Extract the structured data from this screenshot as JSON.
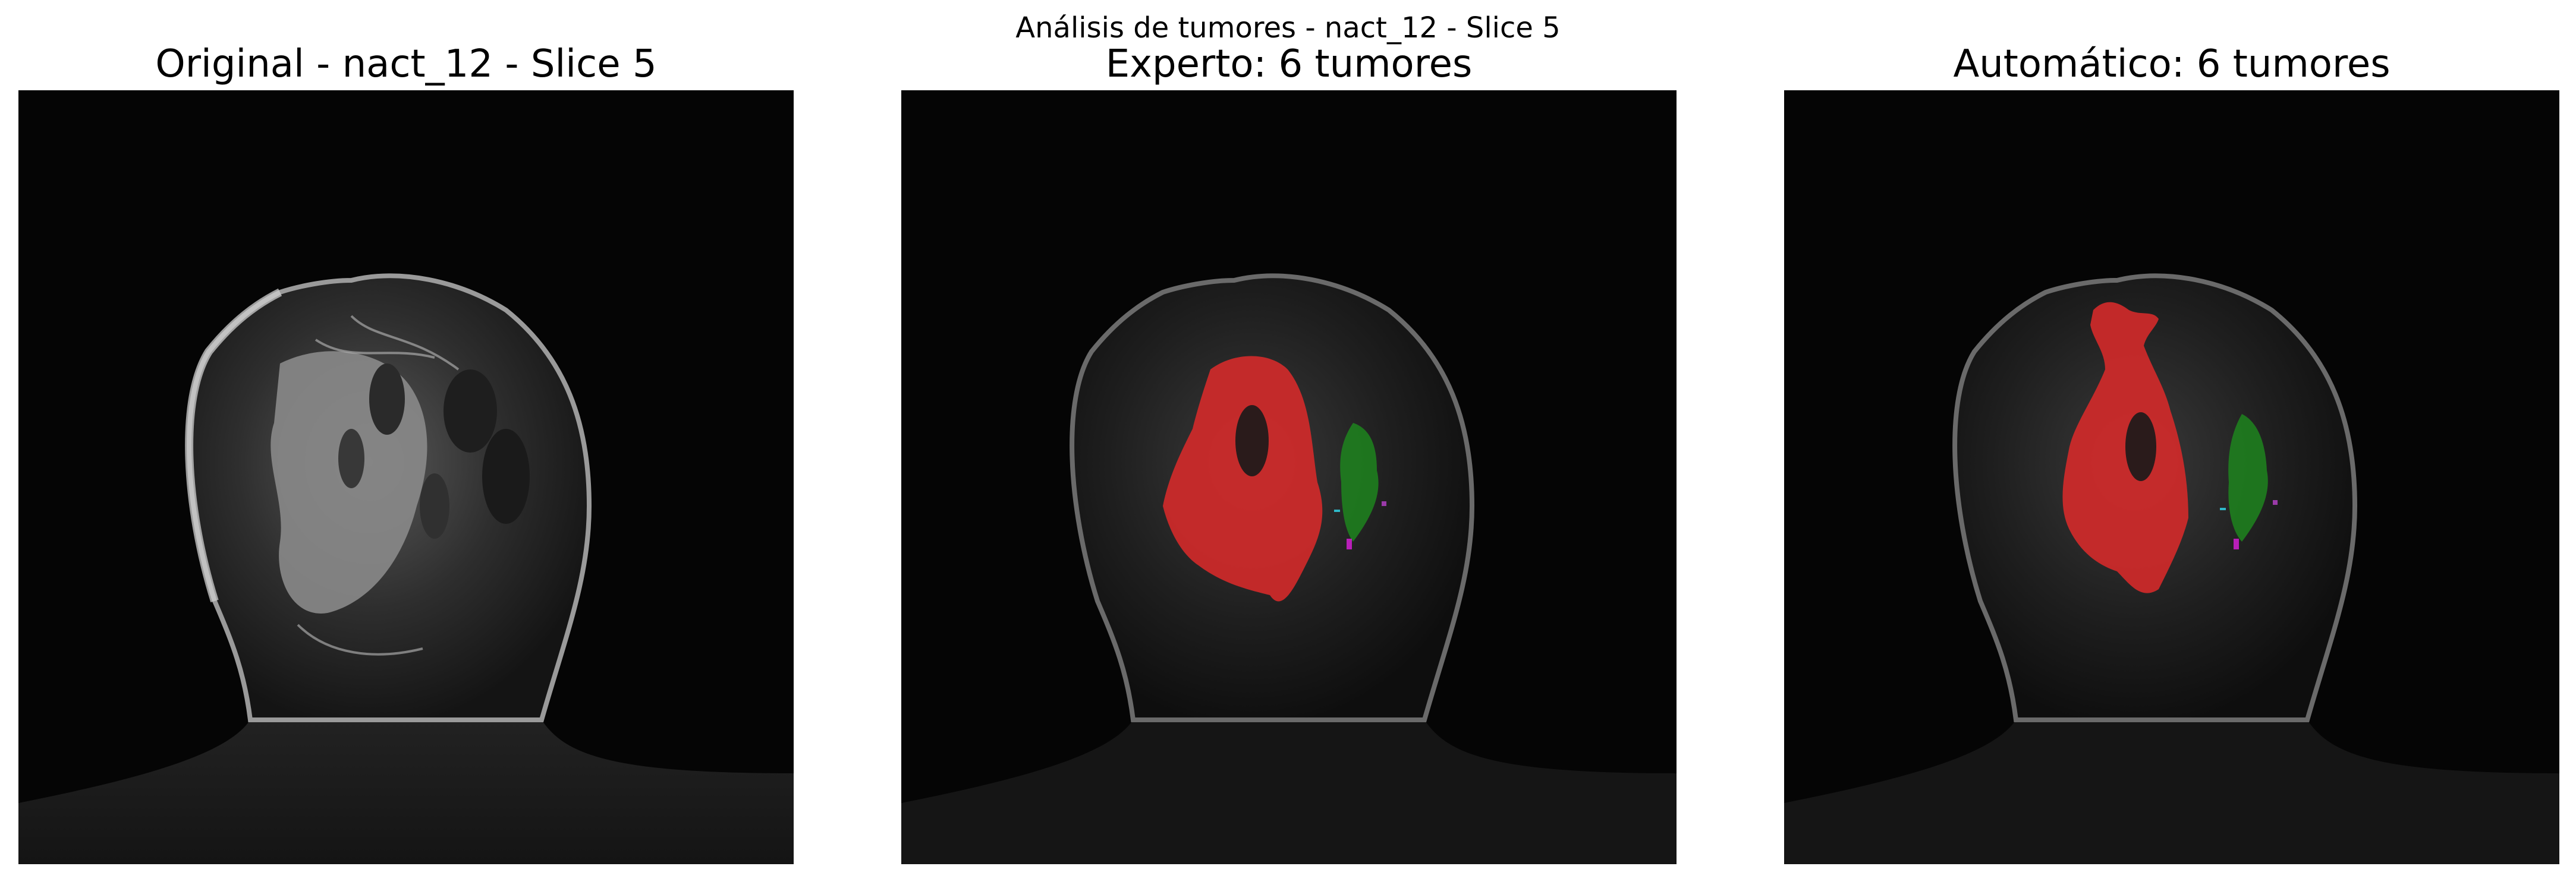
{
  "figure": {
    "suptitle": "Análisis de tumores - nact_12 - Slice 5"
  },
  "panels": [
    {
      "title": "Original - nact_12 - Slice 5",
      "overlay": "none"
    },
    {
      "title": "Experto: 6 tumores",
      "overlay": "expert",
      "tumor_count": 6
    },
    {
      "title": "Automático: 6 tumores",
      "overlay": "automatic",
      "tumor_count": 6
    }
  ],
  "colors": {
    "tumor_1": "#d42a2a",
    "tumor_2": "#1f7a1f",
    "tumor_3": "#b81fb8",
    "tumor_4": "#2fb8c8",
    "background": "#000000"
  }
}
